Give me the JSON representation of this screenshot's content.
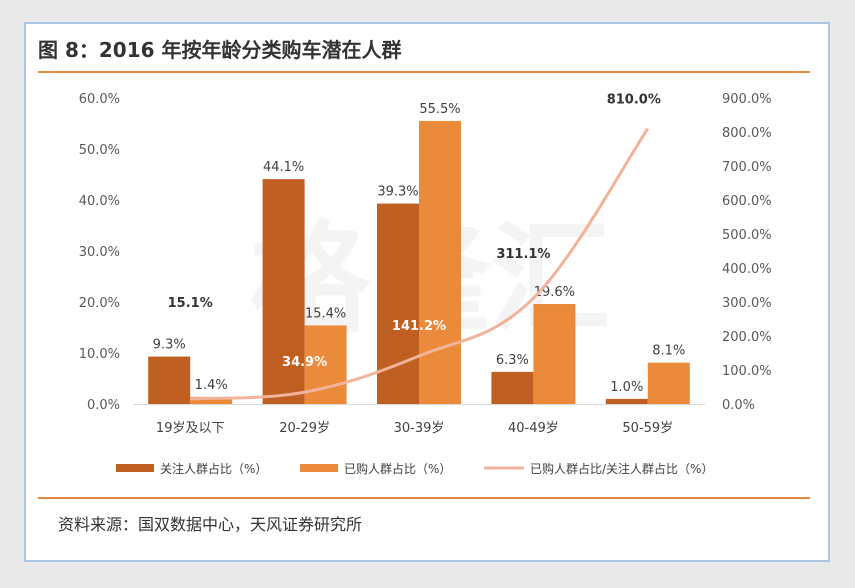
{
  "header": {
    "title": "图 8：2016 年按年龄分类购车潜在人群"
  },
  "footer": {
    "source": "资料来源：国双数据中心，天风证券研究所"
  },
  "colors": {
    "series1": "#bf5f21",
    "series2": "#ec8a3c",
    "line": "#f1b39a",
    "accent_rule": "#e08a3c"
  },
  "chart_data": {
    "type": "bar",
    "categories": [
      "19岁及以下",
      "20-29岁",
      "30-39岁",
      "40-49岁",
      "50-59岁"
    ],
    "series": [
      {
        "name": "关注人群占比（%）",
        "type": "bar",
        "axis": "left",
        "values": [
          9.3,
          44.1,
          39.3,
          6.3,
          1.0
        ],
        "labels": [
          "9.3%",
          "44.1%",
          "39.3%",
          "6.3%",
          "1.0%"
        ]
      },
      {
        "name": "已购人群占比（%）",
        "type": "bar",
        "axis": "left",
        "values": [
          1.4,
          15.4,
          55.5,
          19.6,
          8.1
        ],
        "labels": [
          "1.4%",
          "15.4%",
          "55.5%",
          "19.6%",
          "8.1%"
        ]
      },
      {
        "name": "已购人群占比/关注人群占比（%）",
        "type": "line",
        "axis": "right",
        "values": [
          15.1,
          34.9,
          141.2,
          311.1,
          810.0
        ],
        "labels": [
          "15.1%",
          "34.9%",
          "141.2%",
          "311.1%",
          "810.0%"
        ]
      }
    ],
    "y_left": {
      "ylim": [
        0,
        60
      ],
      "ticks": [
        0,
        10,
        20,
        30,
        40,
        50,
        60
      ],
      "tick_labels": [
        "0.0%",
        "10.0%",
        "20.0%",
        "30.0%",
        "40.0%",
        "50.0%",
        "60.0%"
      ]
    },
    "y_right": {
      "ylim": [
        0,
        900
      ],
      "ticks": [
        0,
        100,
        200,
        300,
        400,
        500,
        600,
        700,
        800,
        900
      ],
      "tick_labels": [
        "0.0%",
        "100.0%",
        "200.0%",
        "300.0%",
        "400.0%",
        "500.0%",
        "600.0%",
        "700.0%",
        "800.0%",
        "900.0%"
      ]
    },
    "grid": false,
    "legend": "bottom"
  }
}
